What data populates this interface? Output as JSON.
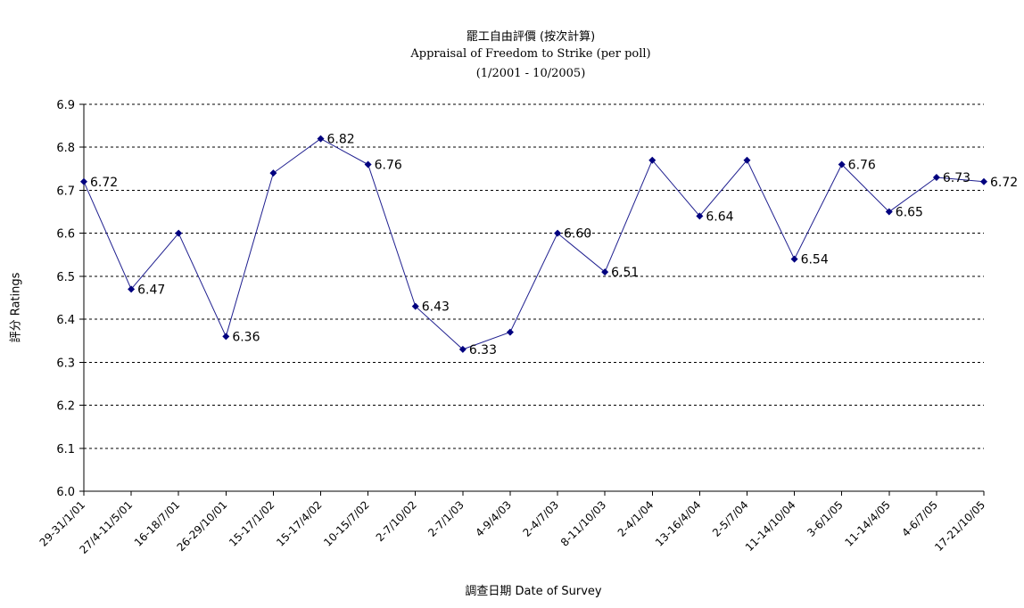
{
  "chart_data": {
    "type": "line",
    "title": "罷工自由評價 (按次計算)",
    "subtitle": "Appraisal of Freedom to Strike (per poll)",
    "period": "(1/2001 - 10/2005)",
    "xlabel": "調查日期 Date of Survey",
    "ylabel": "評分 Ratings",
    "ylim": [
      6.0,
      6.9
    ],
    "yticks": [
      "6.0",
      "6.1",
      "6.2",
      "6.3",
      "6.4",
      "6.5",
      "6.6",
      "6.7",
      "6.8",
      "6.9"
    ],
    "grid": true,
    "categories": [
      "29-31/1/01",
      "27/4-11/5/01",
      "16-18/7/01",
      "26-29/10/01",
      "15-17/1/02",
      "15-17/4/02",
      "10-15/7/02",
      "2-7/10/02",
      "2-7/1/03",
      "4-9/4/03",
      "2-4/7/03",
      "8-11/10/03",
      "2-4/1/04",
      "13-16/4/04",
      "2-5/7/04",
      "11-14/10/04",
      "3-6/1/05",
      "11-14/4/05",
      "4-6/7/05",
      "17-21/10/05"
    ],
    "series": [
      {
        "values": [
          6.72,
          6.47,
          6.6,
          6.36,
          6.74,
          6.82,
          6.76,
          6.43,
          6.33,
          6.37,
          6.6,
          6.51,
          6.77,
          6.64,
          6.77,
          6.54,
          6.76,
          6.65,
          6.73,
          6.72
        ],
        "data_labels": [
          "6.72",
          "6.47",
          "",
          "6.36",
          "",
          "6.82",
          "6.76",
          "6.43",
          "6.33",
          "",
          "6.60",
          "6.51",
          "",
          "6.64",
          "",
          "6.54",
          "6.76",
          "6.65",
          "6.73",
          "6.72"
        ]
      }
    ],
    "colors": {
      "line": "#1f1f8f",
      "marker": "#00007f",
      "grid": "#000000",
      "axis": "#000000"
    }
  }
}
